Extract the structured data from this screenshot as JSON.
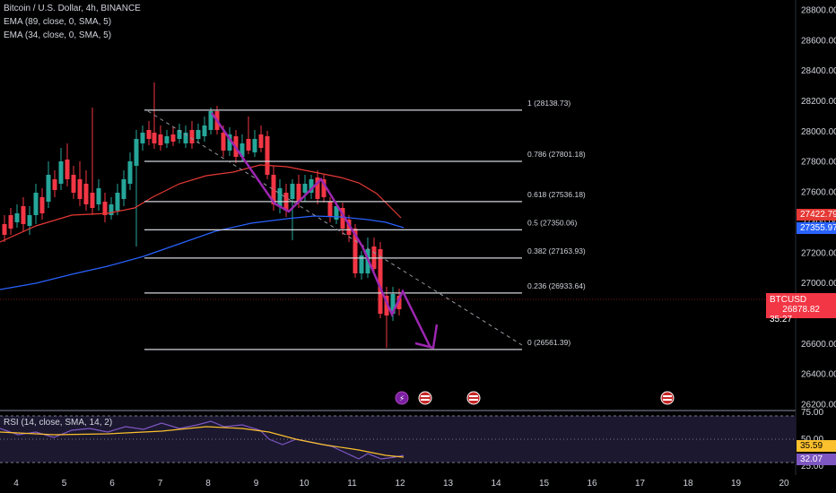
{
  "header": {
    "symbol_title": "Bitcoin / U.S. Dollar, 4h, BINANCE",
    "ema1": "EMA (89, close, 0, SMA, 5)",
    "ema2": "EMA (34, close, 0, SMA, 5)"
  },
  "price_axis": {
    "ticks": [
      "28800.00",
      "28600.00",
      "28400.00",
      "28200.00",
      "28000.00",
      "27800.00",
      "27600.00",
      "27400.00",
      "27200.00",
      "27000.00",
      "26800.00",
      "26600.00",
      "26400.00",
      "26200.00"
    ],
    "tags": {
      "ema34": {
        "label": "27422.79",
        "color": "#e53935"
      },
      "ema89": {
        "label": "27355.97",
        "color": "#2962ff"
      },
      "symbol": {
        "label": "BTCUSD",
        "value": "26878.82",
        "countdown": "35:27",
        "color": "#f23645"
      },
      "rsi": {
        "label": "35.59",
        "color": "#fbc02d"
      },
      "rsi_sma": {
        "label": "32.07",
        "color": "#7e57c2"
      }
    }
  },
  "fib_levels": [
    {
      "label": "1 (28138.73)",
      "price": 28138.73
    },
    {
      "label": "0.786 (27801.18)",
      "price": 27801.18
    },
    {
      "label": "0.618 (27536.18)",
      "price": 27536.18
    },
    {
      "label": "0.5 (27350.06)",
      "price": 27350.06
    },
    {
      "label": "0.382 (27163.93)",
      "price": 27163.93
    },
    {
      "label": "0.236 (26933.64)",
      "price": 26933.64
    },
    {
      "label": "0 (26561.39)",
      "price": 26561.39
    }
  ],
  "time_axis": {
    "labels": [
      "4",
      "5",
      "6",
      "7",
      "8",
      "9",
      "10",
      "11",
      "12",
      "13",
      "14",
      "15",
      "16",
      "17",
      "18",
      "19",
      "20"
    ]
  },
  "rsi_panel": {
    "title": "RSI (14, close, SMA, 14, 2)",
    "ticks": [
      "75.00",
      "50.00",
      "25.00"
    ]
  },
  "colors": {
    "up": "#26a69a",
    "down": "#f23645",
    "ema34": "#e53935",
    "ema89": "#2962ff",
    "path": "#9c27b0",
    "fib": "#d1d4dc"
  }
}
